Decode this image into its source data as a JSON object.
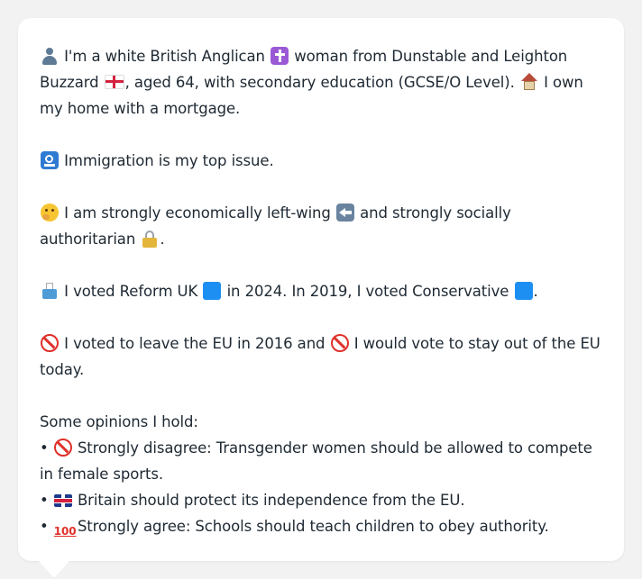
{
  "message": {
    "intro_1": "I'm a white British Anglican",
    "intro_2": "woman from Dunstable and Leighton Buzzard",
    "intro_3": ", aged 64, with secondary education (GCSE/O Level).",
    "intro_4": "I own my home with a mortgage.",
    "issue": "Immigration is my top issue.",
    "ideology_1": "I am strongly economically left-wing",
    "ideology_2": "and strongly socially authoritarian",
    "vote_1": "I voted Reform UK",
    "vote_2": "in 2024. In 2019, I voted Conservative",
    "eu_1": "I voted to leave the EU in 2016 and",
    "eu_2": "I would vote to stay out of the EU today.",
    "opinions_heading": "Some opinions I hold:",
    "opinions": [
      "Strongly disagree: Transgender women should be allowed to compete in female sports.",
      "Britain should protect its independence from the EU.",
      "Strongly agree: Schools should teach children to obey authority."
    ]
  },
  "icons": {
    "person": "person-silhouette",
    "religion": "latin-cross",
    "flag_england": "england-flag",
    "home": "house",
    "issue": "passport-control",
    "thinking": "thinking-face",
    "left": "left-arrow",
    "authoritarian": "lock",
    "ballot": "ballot-box",
    "party_color": "blue-square",
    "prohibited": "no-entry",
    "uk_flag": "union-jack",
    "hundred": "hundred-points"
  },
  "colors": {
    "background": "#f2f2f3",
    "card": "#ffffff",
    "text": "#1e2933",
    "reform_blue": "#1d8ff2"
  }
}
